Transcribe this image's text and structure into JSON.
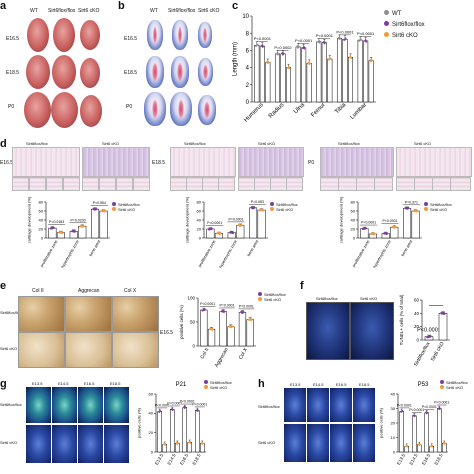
{
  "colors": {
    "wt": "#8e8e8e",
    "flox": "#7b3fa0",
    "cko": "#f19a3e",
    "bar_fill": "#ffffff",
    "fluor_blue": "#2b4aa5",
    "fluor_green": "#2b8a9a"
  },
  "panels": {
    "a": {
      "label": "a",
      "col_headers": [
        "WT",
        "Sirt6flox/flox",
        "Sirt6 cKO"
      ],
      "rows": [
        "E16.5",
        "E18.5",
        "P0"
      ]
    },
    "b": {
      "label": "b",
      "col_headers": [
        "WT",
        "Sirt6flox/flox",
        "Sirt6 cKO"
      ],
      "rows": [
        "E16.5",
        "E18.5",
        "P0"
      ]
    },
    "c": {
      "label": "c",
      "legend": [
        "WT",
        "Sirt6flox/flox",
        "Sirt6 cKO"
      ]
    },
    "d": {
      "label": "d",
      "headers": [
        "Sirt6flox/flox",
        "Sirt6 cKO"
      ],
      "stages": [
        "E16.5",
        "E18.5",
        "P0"
      ],
      "legend": [
        "Sirt6flox/flox",
        "Sirt6 cKO"
      ]
    },
    "e": {
      "label": "e",
      "markers": [
        "Col II",
        "Aggrecan",
        "Col X"
      ],
      "rows": [
        "Sirt6flox/flox",
        "Sirt6 cKO"
      ],
      "stage": "E16.5",
      "legend": [
        "Sirt6flox/flox",
        "Sirt6 cKO"
      ]
    },
    "f": {
      "label": "f",
      "headers": [
        "Sirt6flox/flox",
        "Sirt6 cKO"
      ],
      "pval": "P<0.0001"
    },
    "g": {
      "label": "g",
      "stages": [
        "E13.5",
        "E14.5",
        "E16.5",
        "E18.5"
      ],
      "rows": [
        "Sirt6flox/flox",
        "Sirt6 cKO"
      ],
      "legend": [
        "Sirt6flox/flox",
        "Sirt6 cKO"
      ]
    },
    "h": {
      "label": "h",
      "stages": [
        "E13.5",
        "E14.5",
        "E16.5",
        "E18.5"
      ],
      "rows": [
        "Sirt6flox/flox",
        "Sirt6 cKO"
      ],
      "legend": [
        "Sirt6flox/flox",
        "Sirt6 cKO"
      ]
    }
  },
  "chart_data": [
    {
      "id": "c",
      "type": "bar",
      "categories": [
        "Humerus",
        "Radius",
        "Ulna",
        "Femur",
        "Tibia",
        "Lumbar"
      ],
      "series": [
        {
          "name": "WT",
          "values": [
            6.6,
            5.6,
            6.4,
            7.0,
            7.4,
            7.2
          ]
        },
        {
          "name": "Sirt6flox/flox",
          "values": [
            6.5,
            5.6,
            6.3,
            6.9,
            7.3,
            7.1
          ]
        },
        {
          "name": "Sirt6 cKO",
          "values": [
            4.6,
            4.0,
            4.5,
            5.0,
            5.2,
            4.8
          ]
        }
      ],
      "pvalues": [
        "P<0.0001",
        "P=0.0002",
        "P<0.0001",
        "P<0.0001",
        "P<0.0001",
        "P<0.0001"
      ],
      "ylabel": "Length (mm)",
      "ylim": [
        0,
        10
      ],
      "yticks": [
        "0",
        "2",
        "4",
        "6",
        "8",
        "10"
      ]
    },
    {
      "id": "d1",
      "type": "bar",
      "categories": [
        "proliferative zone",
        "hypertrophic zone",
        "bone area"
      ],
      "series": [
        {
          "name": "Sirt6flox/flox",
          "values": [
            22,
            15,
            64
          ]
        },
        {
          "name": "Sirt6 cKO",
          "values": [
            12,
            26,
            60
          ]
        }
      ],
      "pvalues": [
        "P=0.0183",
        "P=0.0230",
        "P=0.554"
      ],
      "ylabel": "cartilage development (%)",
      "ylim": [
        0,
        80
      ],
      "yticks": [
        "0",
        "20",
        "40",
        "60",
        "80"
      ]
    },
    {
      "id": "d2",
      "type": "bar",
      "categories": [
        "proliferative zone",
        "hypertrophic zone",
        "bone area"
      ],
      "series": [
        {
          "name": "Sirt6flox/flox",
          "values": [
            20,
            12,
            67
          ]
        },
        {
          "name": "Sirt6 cKO",
          "values": [
            10,
            28,
            62
          ]
        }
      ],
      "pvalues": [
        "P=0.0001",
        "P=0.0001",
        "P=0.083"
      ],
      "ylabel": "cartilage development (%)",
      "ylim": [
        0,
        80
      ],
      "yticks": [
        "0",
        "20",
        "40",
        "60",
        "80"
      ]
    },
    {
      "id": "d3",
      "type": "bar",
      "categories": [
        "proliferative zone",
        "hypertrophic zone",
        "bone area"
      ],
      "series": [
        {
          "name": "Sirt6flox/flox",
          "values": [
            21,
            10,
            66
          ]
        },
        {
          "name": "Sirt6 cKO",
          "values": [
            9,
            24,
            60
          ]
        }
      ],
      "pvalues": [
        "P<0.0001",
        "P<0.0001",
        "P=0.371"
      ],
      "ylabel": "cartilage development (%)",
      "ylim": [
        0,
        80
      ],
      "yticks": [
        "0",
        "20",
        "40",
        "60",
        "80"
      ]
    },
    {
      "id": "e",
      "type": "bar",
      "categories": [
        "Col II",
        "Aggrecan",
        "Col X"
      ],
      "series": [
        {
          "name": "Sirt6flox/flox",
          "values": [
            75,
            72,
            70
          ]
        },
        {
          "name": "Sirt6 cKO",
          "values": [
            35,
            40,
            55
          ]
        }
      ],
      "pvalues": [
        "P<0.0001",
        "P=0.0001",
        "P=0.0001"
      ],
      "ylabel": "positive cells (%)",
      "ylim": [
        0,
        100
      ],
      "yticks": [
        "0",
        "50",
        "100"
      ]
    },
    {
      "id": "f",
      "type": "bar",
      "categories": [
        "Sirt6flox/flox",
        "Sirt6 cKO"
      ],
      "series": [
        {
          "name": "",
          "values": [
            5,
            40
          ]
        }
      ],
      "pvalues": [
        "P<0.0001"
      ],
      "ylabel": "TUNEL+ cells (% of total)",
      "ylim": [
        0,
        60
      ],
      "yticks": [
        "0",
        "20",
        "40",
        "60"
      ]
    },
    {
      "id": "g",
      "type": "bar",
      "title": "P21",
      "categories": [
        "E13.5",
        "E14.5",
        "E16.5",
        "E18.5"
      ],
      "series": [
        {
          "name": "Sirt6flox/flox",
          "values": [
            42,
            44,
            46,
            43
          ]
        },
        {
          "name": "Sirt6 cKO",
          "values": [
            8,
            9,
            10,
            9
          ]
        }
      ],
      "pvalues": [
        "P<0.0001",
        "P<0.0001",
        "P<0.0001",
        "P<0.0001"
      ],
      "ylabel": "positive cells (%)",
      "ylim": [
        0,
        60
      ],
      "yticks": [
        "0",
        "20",
        "40",
        "60"
      ]
    },
    {
      "id": "h",
      "type": "bar",
      "title": "P53",
      "categories": [
        "E13.5",
        "E14.5",
        "E16.5",
        "E18.5"
      ],
      "series": [
        {
          "name": "Sirt6flox/flox",
          "values": [
            28,
            25,
            27,
            30
          ]
        },
        {
          "name": "Sirt6 cKO",
          "values": [
            4,
            5,
            4,
            6
          ]
        }
      ],
      "pvalues": [
        "P<0.0001",
        "P<0.0001",
        "P<0.0001",
        "P<0.0001"
      ],
      "ylabel": "positive cells (%)",
      "ylim": [
        0,
        40
      ],
      "yticks": [
        "0",
        "10",
        "20",
        "30",
        "40"
      ]
    }
  ]
}
